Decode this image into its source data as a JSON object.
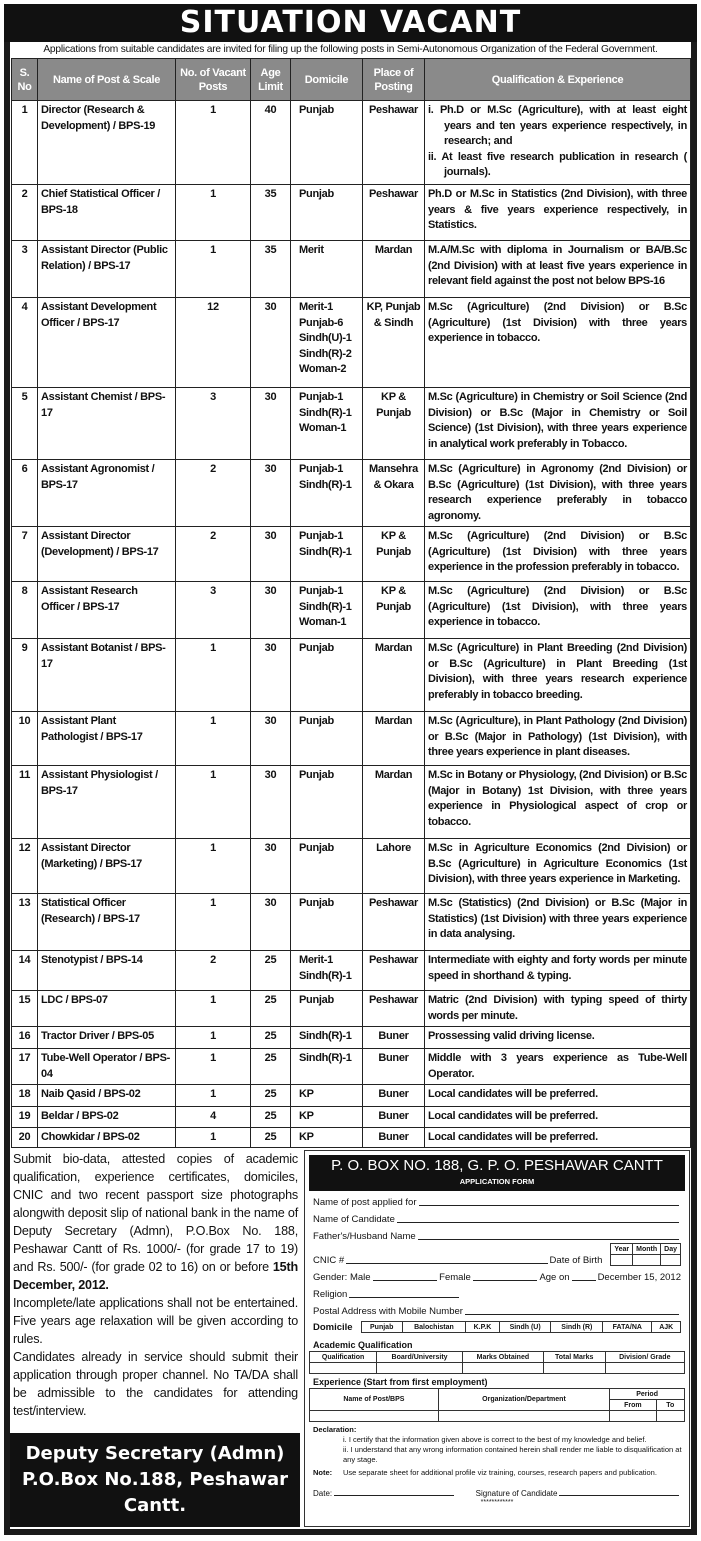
{
  "title": "SITUATION VACANT",
  "intro": "Applications from suitable candidates are invited for filing up the following posts in Semi-Autonomous Organization of the Federal Government.",
  "headers": [
    "S. No",
    "Name of Post & Scale",
    "No. of Vacant Posts",
    "Age Limit",
    "Domicile",
    "Place of Posting",
    "Qualification & Experience"
  ],
  "rows": [
    {
      "sno": "1",
      "post": "Director (Research & Development) / BPS-19",
      "vac": "1",
      "age": "40",
      "dom": "Punjab",
      "place": "Peshawar",
      "qual": "",
      "qual_items": [
        "i. Ph.D or M.Sc (Agriculture), with at least eight years and ten years experience respectively, in research; and",
        "ii. At least five research publication in research ( journals)."
      ]
    },
    {
      "sno": "2",
      "post": "Chief Statistical Officer / BPS-18",
      "vac": "1",
      "age": "35",
      "dom": "Punjab",
      "place": "Peshawar",
      "qual": "Ph.D or M.Sc in Statistics (2nd Division), with three years & five years experience respectively, in Statistics."
    },
    {
      "sno": "3",
      "post": "Assistant Director (Public Relation) / BPS-17",
      "vac": "1",
      "age": "35",
      "dom": "Merit",
      "place": "Mardan",
      "qual": "M.A/M.Sc with diploma in Journalism or BA/B.Sc (2nd Division) with at least five years experience in relevant field against the post not below BPS-16"
    },
    {
      "sno": "4",
      "post": "Assistant Development Officer / BPS-17",
      "vac": "12",
      "age": "30",
      "dom": "Merit-1 Punjab-6 Sindh(U)-1 Sindh(R)-2 Woman-2",
      "place": "KP, Punjab & Sindh",
      "qual": "M.Sc (Agriculture) (2nd Division) or B.Sc (Agriculture) (1st Division) with three years experience in tobacco."
    },
    {
      "sno": "5",
      "post": "Assistant Chemist / BPS-17",
      "vac": "3",
      "age": "30",
      "dom": "Punjab-1 Sindh(R)-1 Woman-1",
      "place": "KP & Punjab",
      "qual": "M.Sc (Agriculture) in Chemistry or Soil Science (2nd Division) or B.Sc (Major in Chemistry or Soil Science) (1st Division), with three years experience in analytical work preferably in Tobacco."
    },
    {
      "sno": "6",
      "post": "Assistant Agronomist / BPS-17",
      "vac": "2",
      "age": "30",
      "dom": "Punjab-1 Sindh(R)-1",
      "place": "Mansehra & Okara",
      "qual": "M.Sc (Agriculture) in Agronomy (2nd Division) or B.Sc (Agriculture) (1st Division), with three years research experience preferably in tobacco agronomy."
    },
    {
      "sno": "7",
      "post": "Assistant Director (Development) / BPS-17",
      "vac": "2",
      "age": "30",
      "dom": "Punjab-1 Sindh(R)-1",
      "place": "KP & Punjab",
      "qual": "M.Sc (Agriculture) (2nd Division) or B.Sc (Agriculture) (1st Division) with three years experience in the profession preferably in tobacco."
    },
    {
      "sno": "8",
      "post": "Assistant Research Officer / BPS-17",
      "vac": "3",
      "age": "30",
      "dom": "Punjab-1 Sindh(R)-1 Woman-1",
      "place": "KP & Punjab",
      "qual": "M.Sc (Agriculture) (2nd Division) or B.Sc (Agriculture) (1st Division), with three years experience in tobacco."
    },
    {
      "sno": "9",
      "post": "Assistant Botanist / BPS-17",
      "vac": "1",
      "age": "30",
      "dom": "Punjab",
      "place": "Mardan",
      "qual": "M.Sc (Agriculture) in Plant Breeding (2nd Division) or B.Sc (Agriculture) in Plant Breeding (1st Division), with three years research experience preferably in tobacco breeding."
    },
    {
      "sno": "10",
      "post": "Assistant Plant Pathologist / BPS-17",
      "vac": "1",
      "age": "30",
      "dom": "Punjab",
      "place": "Mardan",
      "qual": "M.Sc (Agriculture), in Plant Pathology (2nd Division) or B.Sc (Major in Pathology) (1st Division), with three years experience in plant diseases."
    },
    {
      "sno": "11",
      "post": "Assistant Physiologist / BPS-17",
      "vac": "1",
      "age": "30",
      "dom": "Punjab",
      "place": "Mardan",
      "qual": "M.Sc in Botany or Physiology, (2nd Division) or B.Sc (Major in Botany) 1st Division, with three years experience in Physiological aspect of crop or tobacco."
    },
    {
      "sno": "12",
      "post": "Assistant Director (Marketing) / BPS-17",
      "vac": "1",
      "age": "30",
      "dom": "Punjab",
      "place": "Lahore",
      "qual": "M.Sc in Agriculture Economics (2nd Division) or B.Sc (Agriculture) in Agriculture Economics (1st Division), with three years experience in Marketing."
    },
    {
      "sno": "13",
      "post": "Statistical Officer (Research) / BPS-17",
      "vac": "1",
      "age": "30",
      "dom": "Punjab",
      "place": "Peshawar",
      "qual": "M.Sc (Statistics) (2nd Division) or B.Sc (Major in Statistics) (1st Division) with three years experience in data analysing."
    },
    {
      "sno": "14",
      "post": "Stenotypist / BPS-14",
      "vac": "2",
      "age": "25",
      "dom": "Merit-1 Sindh(R)-1",
      "place": "Peshawar",
      "qual": "Intermediate with eighty and forty words per minute speed in shorthand & typing."
    },
    {
      "sno": "15",
      "post": "LDC / BPS-07",
      "vac": "1",
      "age": "25",
      "dom": "Punjab",
      "place": "Peshawar",
      "qual": "Matric (2nd Division) with typing speed of thirty words per minute."
    },
    {
      "sno": "16",
      "post": "Tractor Driver / BPS-05",
      "vac": "1",
      "age": "25",
      "dom": "Sindh(R)-1",
      "place": "Buner",
      "qual": "Prossessing valid driving license."
    },
    {
      "sno": "17",
      "post": "Tube-Well Operator / BPS-04",
      "vac": "1",
      "age": "25",
      "dom": "Sindh(R)-1",
      "place": "Buner",
      "qual": "Middle with 3 years experience as Tube-Well Operator."
    },
    {
      "sno": "18",
      "post": "Naib Qasid / BPS-02",
      "vac": "1",
      "age": "25",
      "dom": "KP",
      "place": "Buner",
      "qual": "Local candidates will be preferred."
    },
    {
      "sno": "19",
      "post": "Beldar / BPS-02",
      "vac": "4",
      "age": "25",
      "dom": "KP",
      "place": "Buner",
      "qual": "Local candidates will be preferred."
    },
    {
      "sno": "20",
      "post": "Chowkidar / BPS-02",
      "vac": "1",
      "age": "25",
      "dom": "KP",
      "place": "Buner",
      "qual": "Local candidates will be preferred."
    }
  ],
  "instructions": {
    "p1": "Submit bio-data, attested copies of academic qualification, experience certificates, domiciles, CNIC and two recent passport size photographs alongwith deposit slip of national bank in the name of Deputy Secretary (Admn), P.O.Box No. 188, Peshawar Cantt of Rs. 1000/- (for grade 17 to 19) and Rs. 500/- (for grade 02 to 16) on or before",
    "deadline": "15th December, 2012.",
    "p2": "Incomplete/late applications shall not be entertained. Five years age relaxation will be given according to rules.",
    "p3": "Candidates already in service should submit their application through proper channel. No TA/DA shall be admissible to the candidates for attending test/interview."
  },
  "contact": {
    "line1": "Deputy Secretary (Admn)",
    "line2": "P.O.Box No.188, Peshawar",
    "line3": "Cantt."
  },
  "form": {
    "address": "P. O. BOX NO. 188, G. P. O. PESHAWAR CANTT",
    "title": "APPLICATION FORM",
    "post_label": "Name of post applied for",
    "candidate_label": "Name of Candidate",
    "father_label": "Father's/Husband Name",
    "cnic_label": "CNIC #",
    "dob_label": "Date of Birth",
    "dob_cols": [
      "Year",
      "Month",
      "Day"
    ],
    "gender_label": "Gender: Male",
    "female_label": "Female",
    "age_label": "Age on",
    "age_date": "December 15, 2012",
    "religion_label": "Religion",
    "address_label": "Postal Address with Mobile Number",
    "domicile_label": "Domicile",
    "domicile_options": [
      "Punjab",
      "Balochistan",
      "K.P.K",
      "Sindh (U)",
      "Sindh (R)",
      "FATA/NA",
      "AJK"
    ],
    "academic_label": "Academic Qualification",
    "academic_cols": [
      "Qualification",
      "Board/University",
      "Marks Obtained",
      "Total Marks",
      "Division/ Grade"
    ],
    "experience_label": "Experience (Start from first employment)",
    "experience_cols": [
      "Name of Post/BPS",
      "Organization/Department",
      "Period",
      "From",
      "To"
    ],
    "declaration_label": "Declaration:",
    "declarations": [
      "i.  I certify that the information given above is correct to the best of my knowledge and belief.",
      "ii.  I understand that any wrong information contained herein shall render me liable to disqualification at any stage."
    ],
    "note_label": "Note:",
    "note": "Use separate sheet for additional profile viz training, courses, research papers and publication.",
    "date_label": "Date:",
    "signature_label": "Signature of Candidate",
    "stars": "************"
  }
}
